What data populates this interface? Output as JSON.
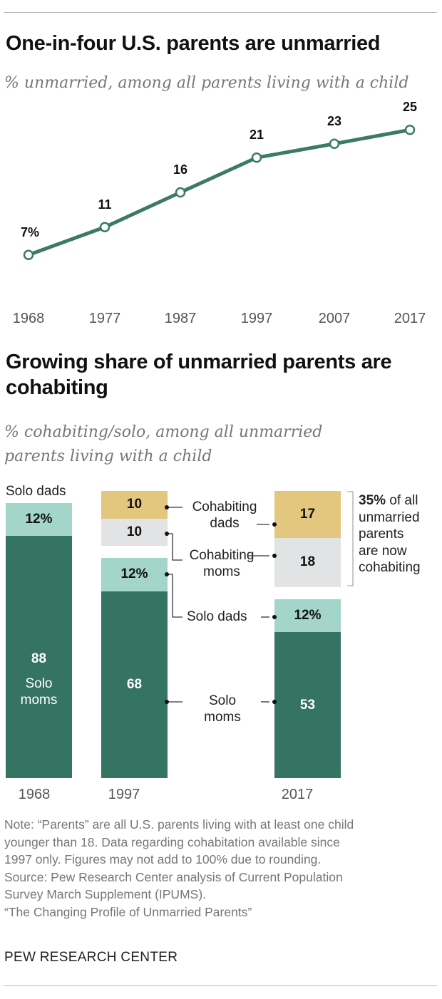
{
  "chart_data": [
    {
      "type": "line",
      "title": "One-in-four U.S. parents are unmarried",
      "subtitle": "% unmarried, among all parents living with a child",
      "x": [
        "1968",
        "1977",
        "1987",
        "1997",
        "2007",
        "2017"
      ],
      "values": [
        7,
        11,
        16,
        21,
        23,
        25
      ],
      "data_labels": [
        "7%",
        "11",
        "16",
        "21",
        "23",
        "25"
      ],
      "color": "#3b7a66",
      "ylim": [
        0,
        30
      ],
      "grid": false
    },
    {
      "type": "bar",
      "stacked": true,
      "title": "Growing share of unmarried parents are cohabiting",
      "subtitle_lines": [
        "% cohabiting/solo, among all unmarried",
        "parents living with a child"
      ],
      "categories": [
        "1968",
        "1997",
        "2017"
      ],
      "series": [
        {
          "name": "Solo moms",
          "color": "#357362",
          "values": [
            88,
            68,
            53
          ],
          "labels": [
            "88",
            "68",
            "53"
          ]
        },
        {
          "name": "Solo dads",
          "color": "#a3d5c8",
          "values": [
            12,
            12,
            12
          ],
          "labels": [
            "12%",
            "12%",
            "12%"
          ]
        },
        {
          "name": "Cohabiting moms",
          "color": "#e2e3e4",
          "values": [
            null,
            10,
            18
          ],
          "labels": [
            "",
            "10",
            "18"
          ]
        },
        {
          "name": "Cohabiting dads",
          "color": "#e3c77f",
          "values": [
            null,
            10,
            17
          ],
          "labels": [
            "",
            "10",
            "17"
          ]
        }
      ],
      "annotations": {
        "solo_dads_1968": "Solo dads",
        "solo_moms_1968_l1": "Solo",
        "solo_moms_1968_l2": "moms",
        "cohab_dads_l1": "Cohabiting",
        "cohab_dads_l2": "dads",
        "cohab_moms_l1": "Cohabiting",
        "cohab_moms_l2": "moms",
        "solo_dads": "Solo dads",
        "solo_moms_l1": "Solo",
        "solo_moms_l2": "moms",
        "bracket_bold": "35%",
        "bracket_l1": " of all",
        "bracket_l2": "unmarried",
        "bracket_l3": "parents",
        "bracket_l4": "are now",
        "bracket_l5": "cohabiting"
      }
    }
  ],
  "notes": [
    "Note: “Parents” are all U.S. parents living with at least one child",
    "younger than 18. Data regarding cohabitation available since",
    "1997 only. Figures may not add to 100% due to rounding.",
    "Source: Pew Research Center analysis of Current Population",
    "Survey March Supplement (IPUMS).",
    "“The Changing Profile of Unmarried Parents”"
  ],
  "brand": "PEW RESEARCH CENTER"
}
